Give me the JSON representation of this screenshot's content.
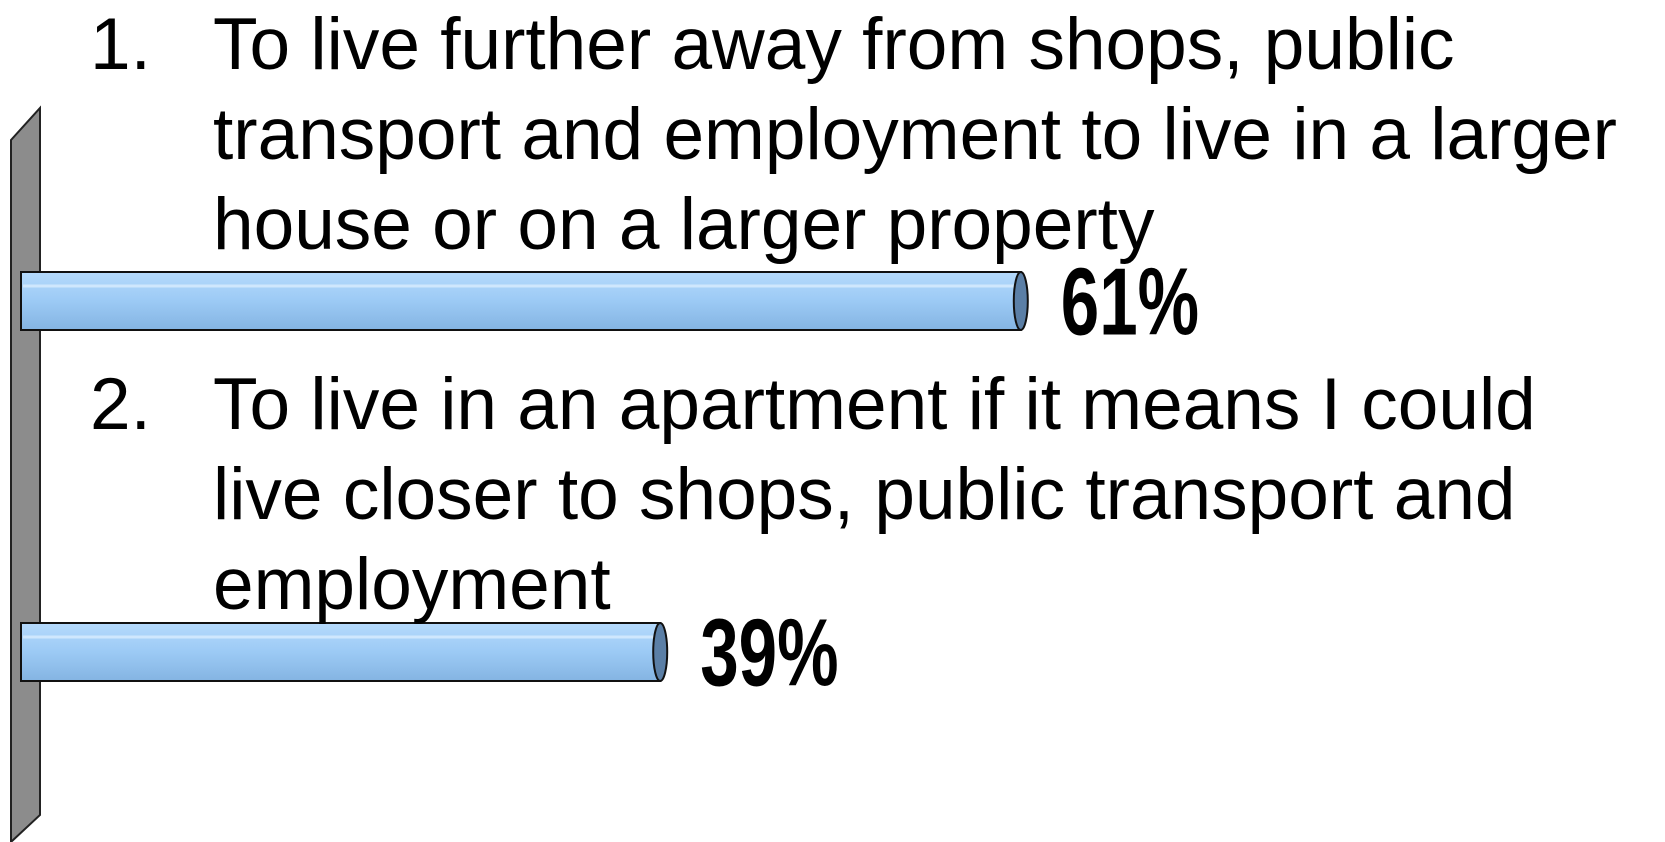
{
  "chart_data": {
    "type": "bar",
    "orientation": "horizontal",
    "category_numbers": [
      "1.",
      "2."
    ],
    "categories": [
      "To live further away from shops, public transport and employment to live in a larger house or on a larger property",
      "To live in an apartment if it means I could live closer to shops, public transport and employment"
    ],
    "values": [
      61,
      39
    ],
    "value_labels": [
      "61%",
      "39%"
    ],
    "color": "#9ccaf5",
    "xlim": [
      0,
      100
    ]
  }
}
